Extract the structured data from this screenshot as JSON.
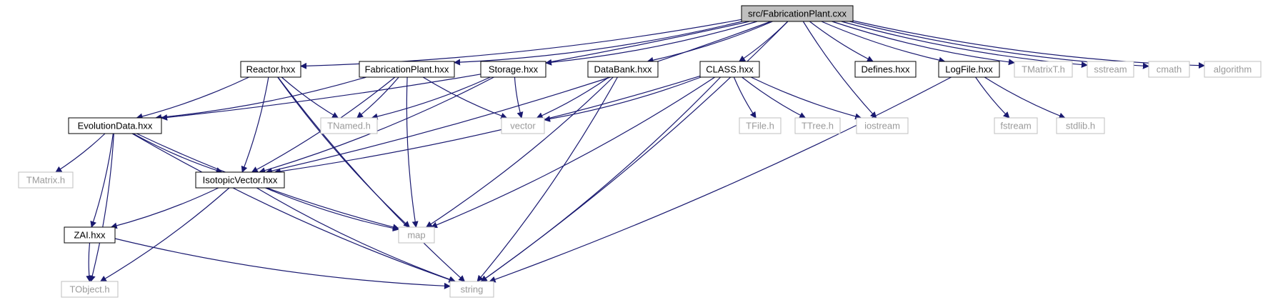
{
  "diagram": {
    "title": "",
    "colors": {
      "edge": "#191970",
      "root_fill": "#bfbfbf",
      "local_border": "#000000",
      "system_border": "#bfbfbf",
      "system_text": "#9a9a9a"
    },
    "nodes": [
      {
        "id": "root",
        "label": "src/FabricationPlant.cxx",
        "kind": "root"
      },
      {
        "id": "reactor",
        "label": "Reactor.hxx",
        "kind": "local"
      },
      {
        "id": "fabplant",
        "label": "FabricationPlant.hxx",
        "kind": "local"
      },
      {
        "id": "storage",
        "label": "Storage.hxx",
        "kind": "local"
      },
      {
        "id": "databank",
        "label": "DataBank.hxx",
        "kind": "local"
      },
      {
        "id": "class",
        "label": "CLASS.hxx",
        "kind": "local"
      },
      {
        "id": "defines",
        "label": "Defines.hxx",
        "kind": "local"
      },
      {
        "id": "logfile",
        "label": "LogFile.hxx",
        "kind": "local"
      },
      {
        "id": "tmatrixt",
        "label": "TMatrixT.h",
        "kind": "system"
      },
      {
        "id": "sstream",
        "label": "sstream",
        "kind": "system"
      },
      {
        "id": "cmath",
        "label": "cmath",
        "kind": "system"
      },
      {
        "id": "algorithm",
        "label": "algorithm",
        "kind": "system"
      },
      {
        "id": "evolution",
        "label": "EvolutionData.hxx",
        "kind": "local"
      },
      {
        "id": "tnamed",
        "label": "TNamed.h",
        "kind": "system"
      },
      {
        "id": "vector",
        "label": "vector",
        "kind": "system"
      },
      {
        "id": "tfile",
        "label": "TFile.h",
        "kind": "system"
      },
      {
        "id": "ttree",
        "label": "TTree.h",
        "kind": "system"
      },
      {
        "id": "iostream",
        "label": "iostream",
        "kind": "system"
      },
      {
        "id": "fstream",
        "label": "fstream",
        "kind": "system"
      },
      {
        "id": "stdlib",
        "label": "stdlib.h",
        "kind": "system"
      },
      {
        "id": "tmatrix",
        "label": "TMatrix.h",
        "kind": "system"
      },
      {
        "id": "isotopic",
        "label": "IsotopicVector.hxx",
        "kind": "local"
      },
      {
        "id": "zai",
        "label": "ZAI.hxx",
        "kind": "local"
      },
      {
        "id": "map",
        "label": "map",
        "kind": "system"
      },
      {
        "id": "tobject",
        "label": "TObject.h",
        "kind": "system"
      },
      {
        "id": "string",
        "label": "string",
        "kind": "system"
      }
    ],
    "edges": [
      [
        "root",
        "reactor"
      ],
      [
        "root",
        "fabplant"
      ],
      [
        "root",
        "storage"
      ],
      [
        "root",
        "databank"
      ],
      [
        "root",
        "class"
      ],
      [
        "root",
        "defines"
      ],
      [
        "root",
        "logfile"
      ],
      [
        "root",
        "tmatrixt"
      ],
      [
        "root",
        "sstream"
      ],
      [
        "root",
        "cmath"
      ],
      [
        "root",
        "algorithm"
      ],
      [
        "root",
        "evolution"
      ],
      [
        "root",
        "isotopic"
      ],
      [
        "root",
        "iostream"
      ],
      [
        "root",
        "string"
      ],
      [
        "reactor",
        "evolution"
      ],
      [
        "reactor",
        "tnamed"
      ],
      [
        "reactor",
        "isotopic"
      ],
      [
        "reactor",
        "map"
      ],
      [
        "reactor",
        "string"
      ],
      [
        "fabplant",
        "evolution"
      ],
      [
        "fabplant",
        "tnamed"
      ],
      [
        "fabplant",
        "isotopic"
      ],
      [
        "fabplant",
        "map"
      ],
      [
        "fabplant",
        "vector"
      ],
      [
        "storage",
        "tnamed"
      ],
      [
        "storage",
        "isotopic"
      ],
      [
        "storage",
        "vector"
      ],
      [
        "databank",
        "vector"
      ],
      [
        "databank",
        "map"
      ],
      [
        "databank",
        "string"
      ],
      [
        "class",
        "vector"
      ],
      [
        "class",
        "isotopic"
      ],
      [
        "class",
        "map"
      ],
      [
        "class",
        "string"
      ],
      [
        "class",
        "tfile"
      ],
      [
        "class",
        "ttree"
      ],
      [
        "class",
        "iostream"
      ],
      [
        "logfile",
        "fstream"
      ],
      [
        "logfile",
        "stdlib"
      ],
      [
        "logfile",
        "string"
      ],
      [
        "evolution",
        "tmatrix"
      ],
      [
        "evolution",
        "isotopic"
      ],
      [
        "evolution",
        "zai"
      ],
      [
        "evolution",
        "map"
      ],
      [
        "evolution",
        "string"
      ],
      [
        "evolution",
        "tobject"
      ],
      [
        "isotopic",
        "zai"
      ],
      [
        "isotopic",
        "map"
      ],
      [
        "isotopic",
        "string"
      ],
      [
        "isotopic",
        "tobject"
      ],
      [
        "zai",
        "tobject"
      ],
      [
        "zai",
        "string"
      ]
    ]
  }
}
